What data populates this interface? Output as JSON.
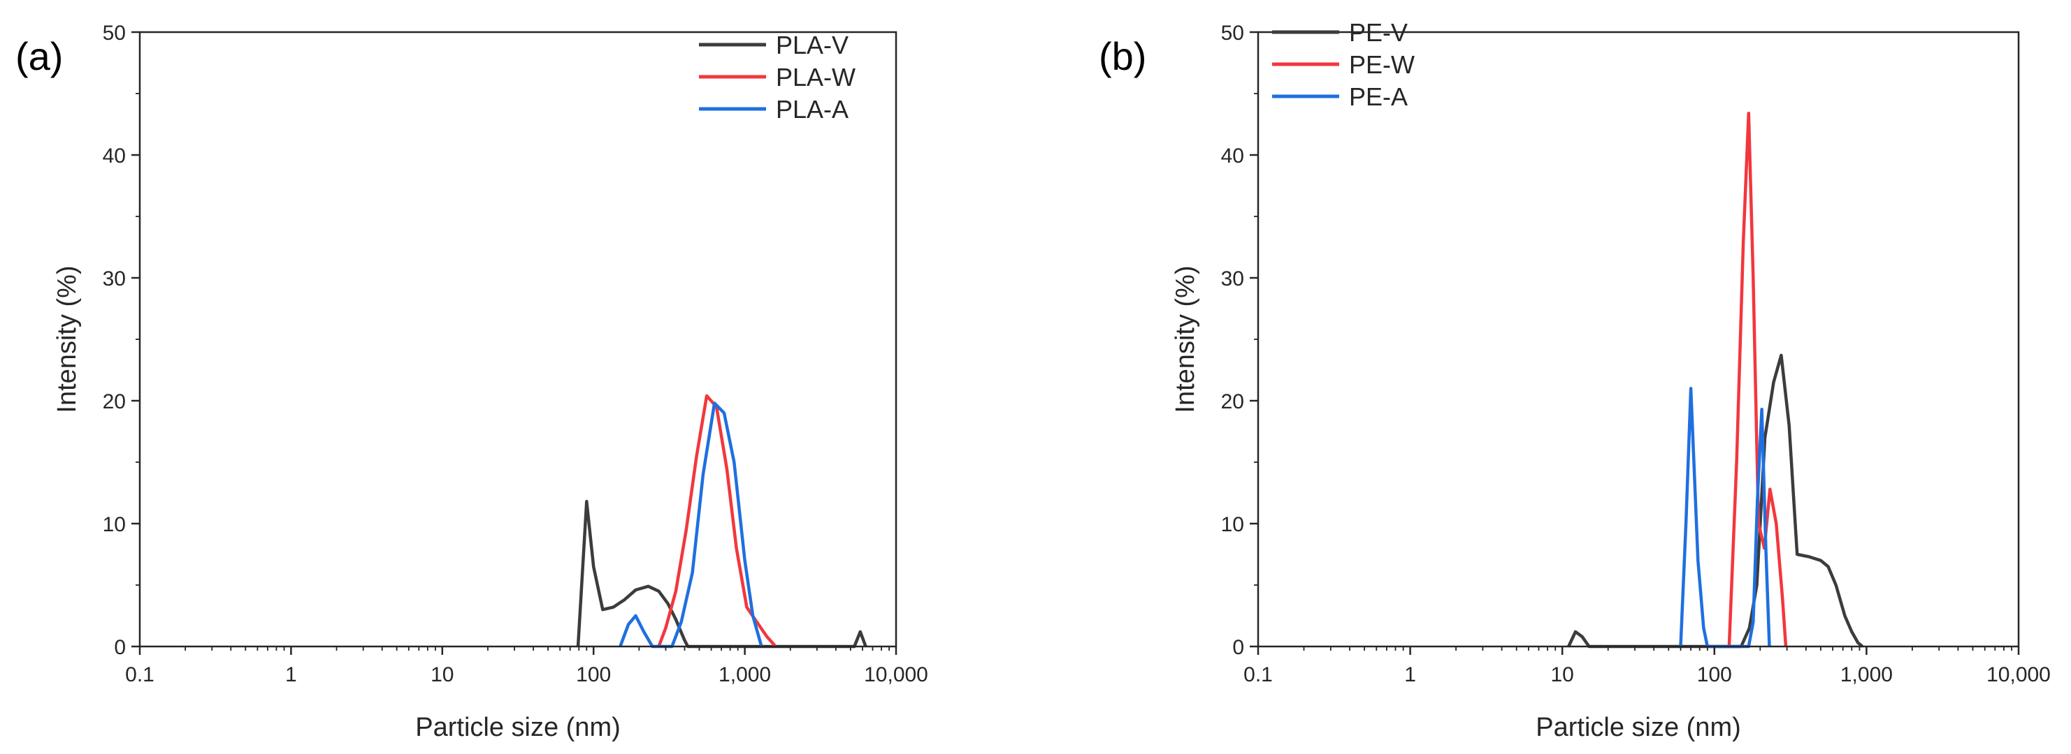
{
  "chart_data": [
    {
      "type": "line",
      "panel_label": "(a)",
      "xlabel": "Particle size (nm)",
      "ylabel": "Intensity (%)",
      "xscale": "log",
      "xlim": [
        0.1,
        10000
      ],
      "ylim": [
        0,
        50
      ],
      "x_tick_values": [
        0.1,
        1,
        10,
        100,
        1000,
        10000
      ],
      "x_tick_labels": [
        "0.1",
        "1",
        "10",
        "100",
        "1,000",
        "10,000"
      ],
      "y_ticks": [
        0,
        10,
        20,
        30,
        40,
        50
      ],
      "y_tick_labels": [
        "0",
        "10",
        "20",
        "30",
        "40",
        "50"
      ],
      "legend_position": "top-right",
      "series": [
        {
          "name": "PLA-V",
          "color": "#3c3c3c",
          "x": [
            79,
            90,
            100,
            115,
            135,
            160,
            190,
            230,
            270,
            310,
            350,
            400,
            420,
            5300,
            5800,
            6300
          ],
          "y": [
            0,
            11.8,
            6.5,
            3,
            3.2,
            3.8,
            4.6,
            4.9,
            4.5,
            3.5,
            2.2,
            0.5,
            0,
            0,
            1.2,
            0
          ]
        },
        {
          "name": "PLA-W",
          "color": "#f2373c",
          "x": [
            270,
            300,
            350,
            410,
            480,
            560,
            650,
            760,
            880,
            1030,
            1200,
            1400,
            1600
          ],
          "y": [
            0,
            1.5,
            4.5,
            9.5,
            15.5,
            20.4,
            19.5,
            14.5,
            8,
            3.2,
            2,
            0.8,
            0
          ]
        },
        {
          "name": "PLA-A",
          "color": "#1f6fe0",
          "x": [
            150,
            170,
            190,
            215,
            245,
            330,
            380,
            450,
            530,
            630,
            730,
            850,
            1000,
            1130,
            1290
          ],
          "y": [
            0,
            1.8,
            2.5,
            1.2,
            0,
            0,
            2,
            6,
            14,
            19.8,
            19,
            15,
            7,
            2.5,
            0
          ]
        }
      ]
    },
    {
      "type": "line",
      "panel_label": "(b)",
      "xlabel": "Particle size (nm)",
      "ylabel": "Intensity (%)",
      "xscale": "log",
      "xlim": [
        0.1,
        10000
      ],
      "ylim": [
        0,
        50
      ],
      "x_tick_values": [
        0.1,
        1,
        10,
        100,
        1000,
        10000
      ],
      "x_tick_labels": [
        "0.1",
        "1",
        "10",
        "100",
        "1,000",
        "10,000"
      ],
      "y_ticks": [
        0,
        10,
        20,
        30,
        40,
        50
      ],
      "y_tick_labels": [
        "0",
        "10",
        "20",
        "30",
        "40",
        "50"
      ],
      "legend_position": "top-left",
      "series": [
        {
          "name": "PE-V",
          "color": "#3c3c3c",
          "x": [
            11,
            12.2,
            13.5,
            15,
            150,
            170,
            190,
            215,
            245,
            275,
            310,
            350,
            420,
            500,
            560,
            630,
            720,
            800,
            880,
            940
          ],
          "y": [
            0,
            1.2,
            0.8,
            0,
            0,
            1.5,
            5,
            17,
            21.5,
            23.7,
            18,
            7.5,
            7.3,
            7,
            6.5,
            5,
            2.5,
            1.2,
            0.3,
            0
          ]
        },
        {
          "name": "PE-W",
          "color": "#f2373c",
          "x": [
            125,
            140,
            155,
            168,
            180,
            195,
            213,
            232,
            255,
            280,
            295
          ],
          "y": [
            0,
            15,
            33,
            43.4,
            30,
            10,
            8,
            12.8,
            10,
            4,
            0
          ]
        },
        {
          "name": "PE-A",
          "color": "#1f6fe0",
          "x": [
            60,
            65,
            70,
            78,
            85,
            90,
            168,
            180,
            192,
            205,
            218,
            230
          ],
          "y": [
            0,
            10,
            21,
            7,
            1.5,
            0,
            0,
            2,
            12,
            19.3,
            8,
            0
          ]
        }
      ]
    }
  ]
}
